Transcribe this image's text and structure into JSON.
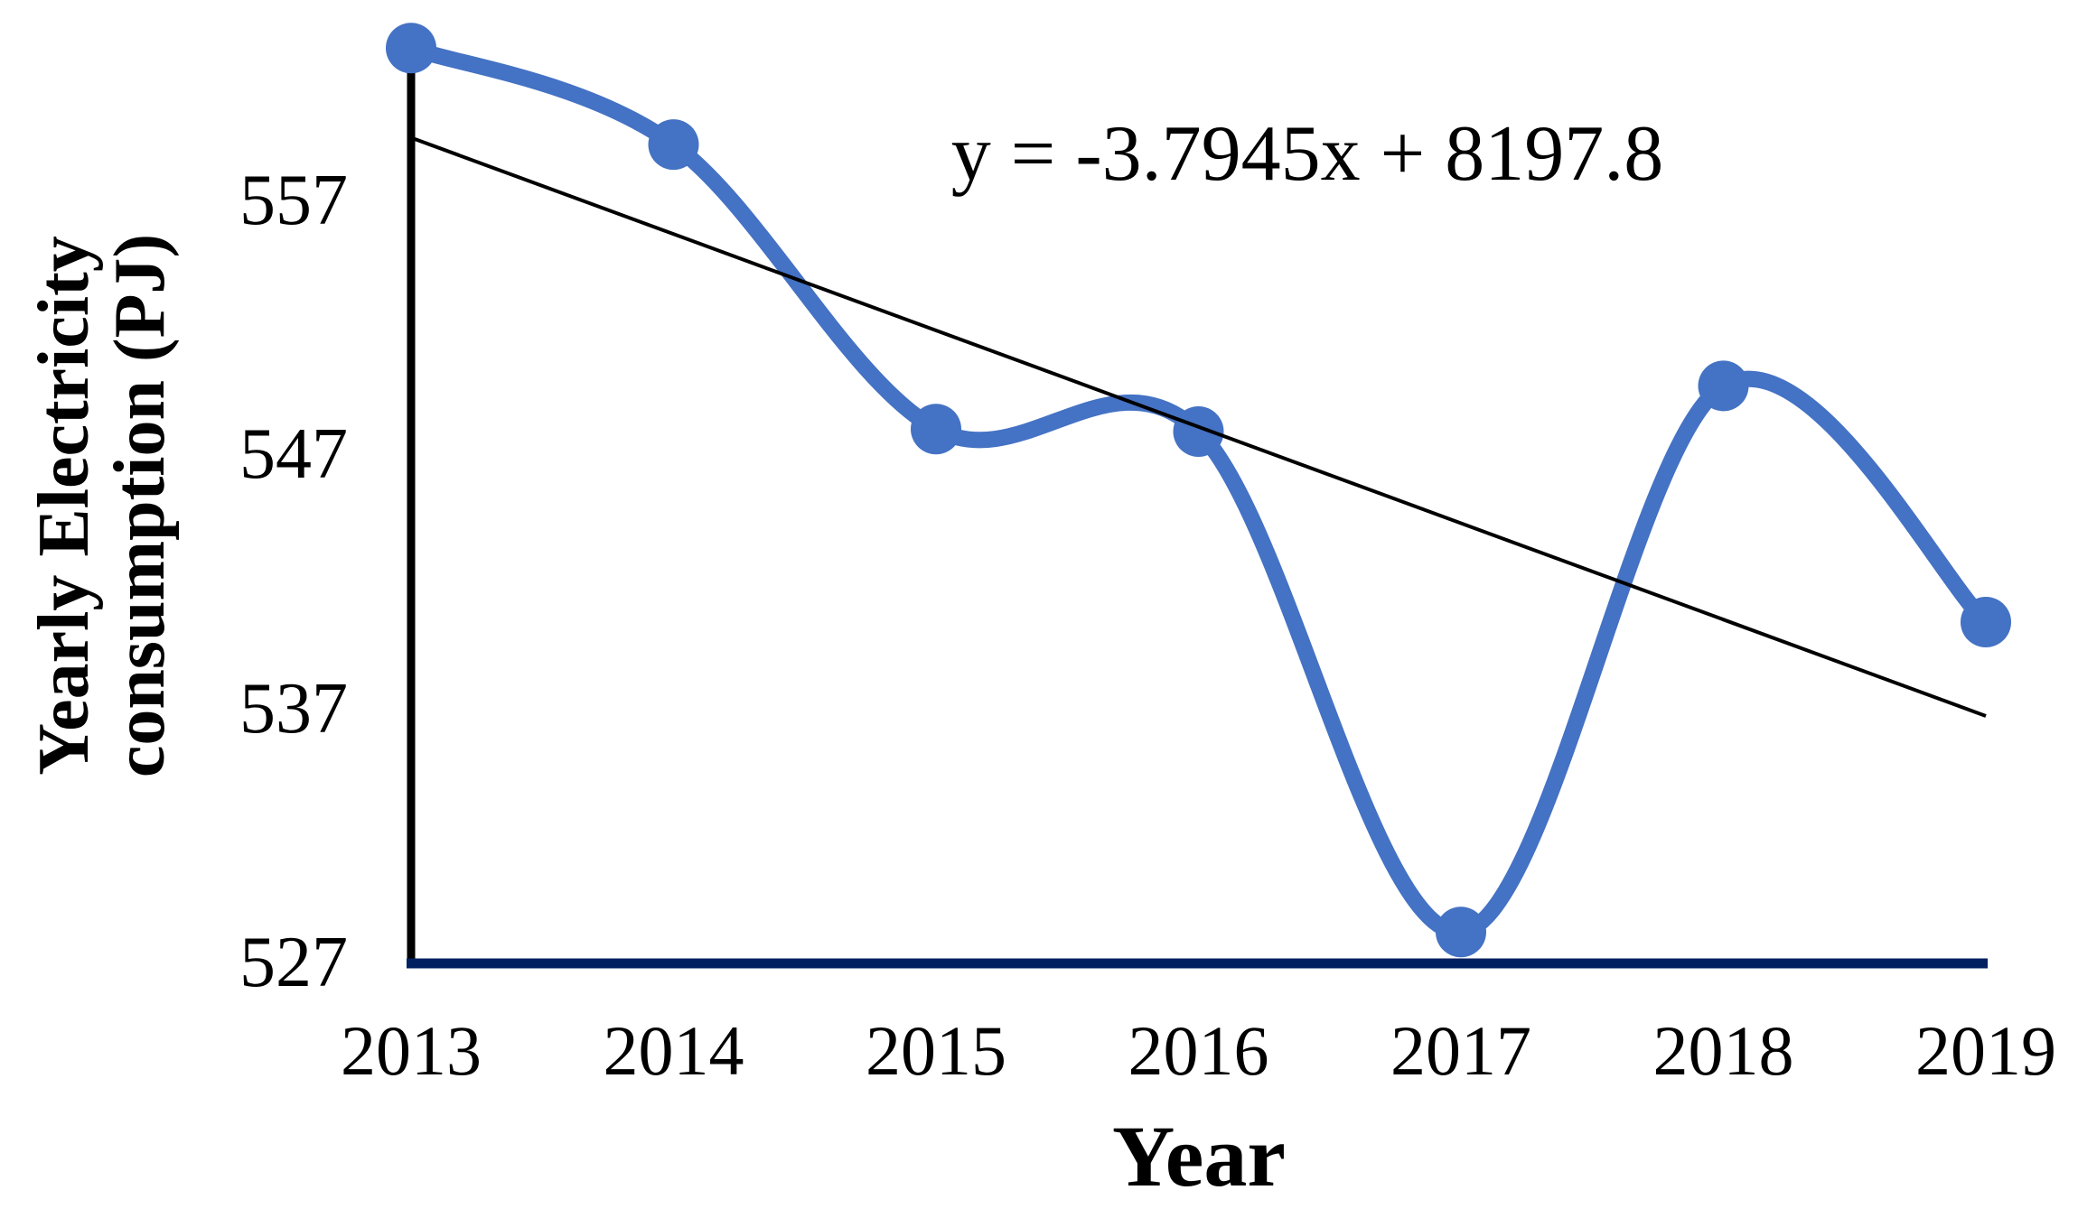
{
  "figure": {
    "equation": "y = -3.7945x + 8197.8",
    "x_axis_title": "Year",
    "y_axis_title_line1": "Yearly Electricity",
    "y_axis_title_line2": "consumption (PJ)"
  },
  "chart_data": {
    "type": "line",
    "title": "",
    "x": [
      2013,
      2014,
      2015,
      2016,
      2017,
      2018,
      2019
    ],
    "series": [
      {
        "name": "Yearly Electricity consumption (PJ)",
        "values": [
          563.0,
          559.2,
          548.0,
          547.9,
          528.2,
          549.7,
          540.4
        ]
      }
    ],
    "trendline": {
      "equation": "y = -3.7945x + 8197.8",
      "slope": -3.7945,
      "intercept": 8197.8
    },
    "xlabel": "Year",
    "ylabel": "Yearly Electricity consumption (PJ)",
    "ylim": [
      527,
      563
    ],
    "yticks": [
      557,
      547,
      537,
      527
    ],
    "xticks": [
      2013,
      2014,
      2015,
      2016,
      2017,
      2018,
      2019
    ],
    "smooth": true,
    "grid": false,
    "legend": false,
    "colors": {
      "series": "#4472C4",
      "marker": "#4472C4",
      "trendline": "#000000",
      "x_axis_line": "#002060",
      "y_axis_line": "#000000"
    }
  }
}
